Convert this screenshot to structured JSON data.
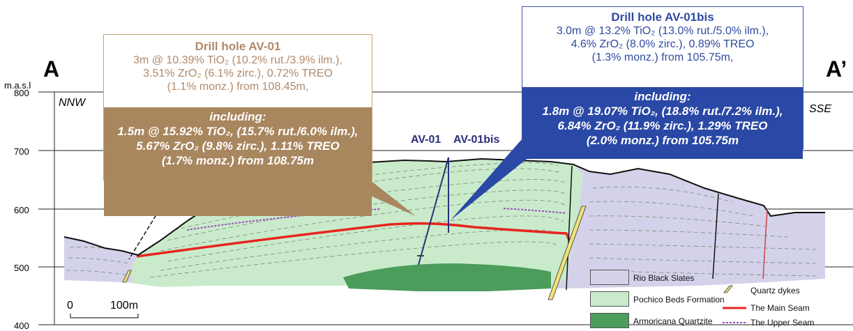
{
  "section": {
    "left_label": "A",
    "right_label": "A’",
    "y_axis_title": "m.a.s.l",
    "y_ticks": [
      "800",
      "700",
      "600",
      "500",
      "400"
    ],
    "left_direction": "NNW",
    "right_direction": "SSE"
  },
  "drill_labels": {
    "hole1": "AV-01",
    "hole2": "AV-01bis"
  },
  "box_av01": {
    "title": "Drill hole AV-01",
    "lines": [
      "3m @ 10.39% TiO₂ (10.2% rut./3.9% ilm.),",
      "3.51% ZrO₂ (6.1% zirc.), 0.72% TREO",
      "(1.1% monz.) from 108.45m,"
    ],
    "highlight": [
      "including:",
      "1.5m @ 15.92% TiO₂, (15.7% rut./6.0% ilm.),",
      "5.67% ZrO₂ (9.8% zirc.), 1.11% TREO",
      "(1.7% monz.) from 108.75m"
    ]
  },
  "box_av01bis": {
    "title": "Drill hole AV-01bis",
    "lines": [
      "3.0m @ 13.2% TiO₂ (13.0% rut./5.0% ilm.),",
      "4.6% ZrO₂ (8.0% zirc.), 0.89% TREO",
      "(1.3% monz.) from 105.75m,"
    ],
    "highlight": [
      "including:",
      "1.8m @ 19.07% TiO₂, (18.8% rut./7.2% ilm.),",
      "6.84% ZrO₂ (11.9% zirc.), 1.29% TREO",
      "(2.0% monz.) from 105.75m"
    ]
  },
  "scale_bar": {
    "start": "0",
    "end": "100m"
  },
  "legend": [
    {
      "label": "Rio Black Slates",
      "icon": "swatch",
      "color": "#d4d2ea"
    },
    {
      "label": "Pochico Beds Formation",
      "icon": "swatch",
      "color": "#c9ebcb"
    },
    {
      "label": "Armoricana Quartzite",
      "icon": "swatch",
      "color": "#4c9c5c"
    },
    {
      "label": "Quartz dykes",
      "icon": "quartz-dyke-icon",
      "color": "#f1e27a"
    },
    {
      "label": "The Main Seam",
      "icon": "main-seam-line-icon",
      "color": "#e8241f"
    },
    {
      "label": "The Upper Seam",
      "icon": "upper-seam-line-icon",
      "color": "#9a4fb8"
    }
  ],
  "colors": {
    "slates": "#d4d2ea",
    "pochico": "#c9ebcb",
    "armoricana": "#4c9c5c",
    "main_seam": "#e8241f",
    "upper_seam": "#9a4fb8",
    "av01_accent": "#a8865e",
    "av01bis_accent": "#2a48a5"
  }
}
